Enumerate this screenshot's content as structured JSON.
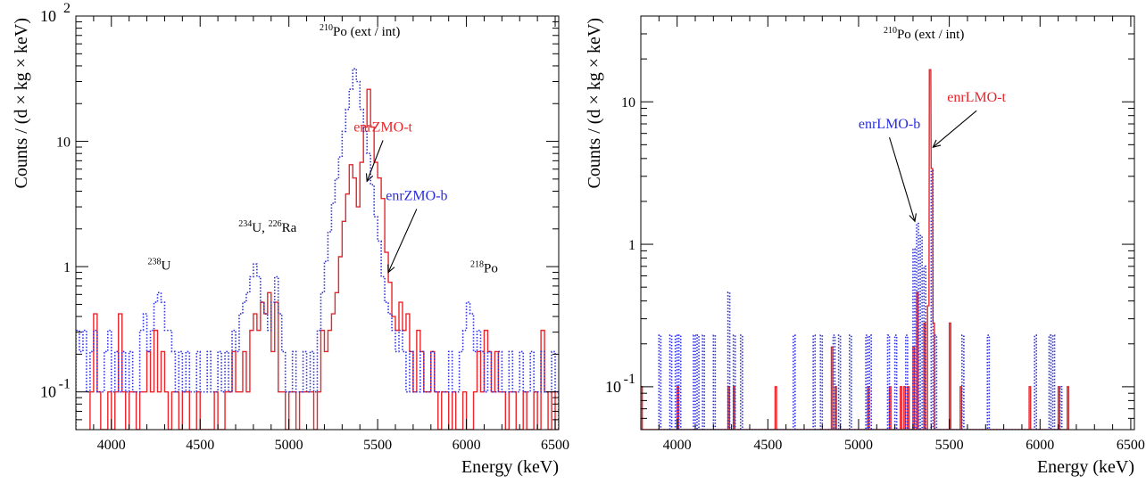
{
  "colors": {
    "red_series": "#e8262b",
    "blue_series": "#2a2ee0",
    "axis": "#000000"
  },
  "chart_data": [
    {
      "type": "line",
      "style": "histogram-step",
      "xlabel": "Energy (keV)",
      "ylabel": "Counts / (d × kg × keV)",
      "xlim": [
        3800,
        6520
      ],
      "ylim": [
        0.05,
        100
      ],
      "yscale": "log",
      "xticks": [
        "4000",
        "4500",
        "5000",
        "5500",
        "6000",
        "6500"
      ],
      "yticks": [
        {
          "value": 0.1,
          "mantissa": "10",
          "exp": "-1"
        },
        {
          "value": 1,
          "mantissa": "1",
          "exp": ""
        },
        {
          "value": 10,
          "mantissa": "10",
          "exp": ""
        },
        {
          "value": 100,
          "mantissa": "10",
          "exp": "2"
        }
      ],
      "annotations": [
        {
          "sup": "238",
          "base": "U",
          "x": 4270,
          "y": 0.95
        },
        {
          "sup": "234",
          "base": "U, ",
          "sup2": "226",
          "base2": "Ra",
          "x": 4880,
          "y": 1.9
        },
        {
          "sup": "210",
          "base": "Po (ext / int)",
          "x": 5400,
          "y": 70
        },
        {
          "sup": "218",
          "base": "Po",
          "x": 6100,
          "y": 0.9
        }
      ],
      "legend_labels": [
        {
          "text": "enrZMO-t",
          "series": "red",
          "x": 5530,
          "y": 12,
          "arrow_to": [
            5440,
            4.8
          ]
        },
        {
          "text": "enrZMO-b",
          "series": "blue",
          "x": 5720,
          "y": 3.4,
          "arrow_to": [
            5560,
            0.9
          ]
        }
      ],
      "series": [
        {
          "name": "enrZMO-t",
          "color": "red",
          "line": "solid",
          "x": [
            3880,
            3900,
            3920,
            3940,
            3960,
            3980,
            4000,
            4020,
            4040,
            4060,
            4080,
            4100,
            4120,
            4140,
            4160,
            4180,
            4200,
            4220,
            4240,
            4260,
            4280,
            4300,
            4320,
            4340,
            4360,
            4380,
            4400,
            4420,
            4440,
            4460,
            4480,
            4500,
            4520,
            4540,
            4560,
            4580,
            4600,
            4620,
            4640,
            4660,
            4680,
            4700,
            4720,
            4740,
            4760,
            4780,
            4800,
            4820,
            4840,
            4860,
            4880,
            4900,
            4920,
            4940,
            4960,
            4980,
            5000,
            5020,
            5040,
            5060,
            5080,
            5100,
            5120,
            5140,
            5160,
            5180,
            5200,
            5220,
            5240,
            5260,
            5280,
            5300,
            5320,
            5340,
            5360,
            5380,
            5400,
            5420,
            5440,
            5460,
            5480,
            5500,
            5520,
            5540,
            5560,
            5580,
            5600,
            5620,
            5640,
            5660,
            5680,
            5700,
            5720,
            5740,
            5760,
            5780,
            5800,
            5820,
            5840,
            5860,
            5880,
            5900,
            5920,
            5940,
            5960,
            5980,
            6000,
            6020,
            6040,
            6060,
            6080,
            6100,
            6120,
            6140,
            6160,
            6180,
            6200,
            6220,
            6240,
            6260,
            6280,
            6300,
            6320,
            6340,
            6360,
            6380,
            6400,
            6420,
            6440,
            6460,
            6480,
            6500
          ],
          "values": [
            0.1,
            0.42,
            0.1,
            0,
            0,
            0.1,
            0,
            0.1,
            0.42,
            0.1,
            0,
            0.1,
            0.1,
            0,
            0.1,
            0.1,
            0.21,
            0.1,
            0.31,
            0.1,
            0.21,
            0.1,
            0,
            0.1,
            0.1,
            0,
            0.1,
            0.1,
            0,
            0,
            0.1,
            0,
            0,
            0,
            0,
            0.1,
            0,
            0,
            0.1,
            0.1,
            0.21,
            0.1,
            0.1,
            0.21,
            0.1,
            0.31,
            0.42,
            0.31,
            0.52,
            0.42,
            0.62,
            0.21,
            0.52,
            0.1,
            0.1,
            0,
            0.1,
            0.1,
            0,
            0.1,
            0.1,
            0.1,
            0.1,
            0,
            0.1,
            0.31,
            0.21,
            0.31,
            0.42,
            0.62,
            1.2,
            2.3,
            3.8,
            6.5,
            5.1,
            3.0,
            6.8,
            13,
            26,
            13,
            6.8,
            5.1,
            3.5,
            1.3,
            0.75,
            0.4,
            0.31,
            0.52,
            0.31,
            0.42,
            0.21,
            0.1,
            0.31,
            0.21,
            0.1,
            0.1,
            0.21,
            0.1,
            0,
            0.1,
            0.1,
            0,
            0.1,
            0,
            0,
            0.1,
            0,
            0,
            0.1,
            0.21,
            0.1,
            0.31,
            0.21,
            0.1,
            0.21,
            0.1,
            0.1,
            0,
            0.1,
            0.1,
            0,
            0,
            0.1,
            0,
            0,
            0.1,
            0,
            0.31,
            0.1,
            0,
            0.1,
            0
          ],
          "bin_width": 20
        },
        {
          "name": "enrZMO-b",
          "color": "blue",
          "line": "dotted",
          "x": [
            3800,
            3820,
            3840,
            3860,
            3880,
            3900,
            3920,
            3940,
            3960,
            3980,
            4000,
            4020,
            4040,
            4060,
            4080,
            4100,
            4120,
            4140,
            4160,
            4180,
            4200,
            4220,
            4240,
            4260,
            4280,
            4300,
            4320,
            4340,
            4360,
            4380,
            4400,
            4420,
            4440,
            4460,
            4480,
            4500,
            4520,
            4540,
            4560,
            4580,
            4600,
            4620,
            4640,
            4660,
            4680,
            4700,
            4720,
            4740,
            4760,
            4780,
            4800,
            4820,
            4840,
            4860,
            4880,
            4900,
            4920,
            4940,
            4960,
            4980,
            5000,
            5020,
            5040,
            5060,
            5080,
            5100,
            5120,
            5140,
            5160,
            5180,
            5200,
            5220,
            5240,
            5260,
            5280,
            5300,
            5320,
            5340,
            5360,
            5380,
            5400,
            5420,
            5440,
            5460,
            5480,
            5500,
            5520,
            5540,
            5560,
            5580,
            5600,
            5620,
            5640,
            5660,
            5680,
            5700,
            5720,
            5740,
            5760,
            5780,
            5800,
            5820,
            5840,
            5860,
            5880,
            5900,
            5920,
            5940,
            5960,
            5980,
            6000,
            6020,
            6040,
            6060,
            6080,
            6100,
            6120,
            6140,
            6160,
            6180,
            6200,
            6220,
            6240,
            6260,
            6280,
            6300,
            6320,
            6340,
            6360,
            6380,
            6400,
            6420,
            6440,
            6460,
            6480,
            6500
          ],
          "values": [
            0.31,
            0.21,
            0.31,
            0.1,
            0.21,
            0.31,
            0.1,
            0.1,
            0.21,
            0.31,
            0.1,
            0.21,
            0.1,
            0.21,
            0.1,
            0.21,
            0.1,
            0.1,
            0.31,
            0.42,
            0.21,
            0.31,
            0.52,
            0.62,
            0.52,
            0.31,
            0.31,
            0.21,
            0.1,
            0.21,
            0.1,
            0.21,
            0.1,
            0.1,
            0.21,
            0.1,
            0.1,
            0.21,
            0.1,
            0.1,
            0.21,
            0.1,
            0.21,
            0.1,
            0.31,
            0.21,
            0.42,
            0.52,
            0.62,
            0.83,
            1.05,
            0.83,
            0.52,
            0.42,
            0.31,
            0.52,
            0.83,
            0.42,
            0.21,
            0.1,
            0.1,
            0.21,
            0.1,
            0.1,
            0.21,
            0.1,
            0.21,
            0.1,
            0.31,
            0.62,
            1.1,
            1.9,
            3.2,
            5.0,
            7.5,
            12,
            18,
            26,
            38,
            30,
            18,
            12,
            8.0,
            4.5,
            2.5,
            1.6,
            0.83,
            0.52,
            0.42,
            0.31,
            0.21,
            0.31,
            0.21,
            0.1,
            0.21,
            0.1,
            0.1,
            0.21,
            0.1,
            0.1,
            0.21,
            0.1,
            0.1,
            0.1,
            0.1,
            0.21,
            0.1,
            0.1,
            0.21,
            0.31,
            0.52,
            0.42,
            0.21,
            0.31,
            0.21,
            0.1,
            0.21,
            0.1,
            0.1,
            0.21,
            0.1,
            0.1,
            0.21,
            0.1,
            0.1,
            0.21,
            0.1,
            0.1,
            0.21,
            0.1,
            0.1,
            0.21,
            0.1,
            0.1,
            0.21,
            0.1
          ],
          "bin_width": 20
        }
      ]
    },
    {
      "type": "line",
      "style": "histogram-step",
      "xlabel": "Energy (keV)",
      "ylabel": "Counts / (d × kg × keV)",
      "xlim": [
        3800,
        6520
      ],
      "ylim": [
        0.05,
        40
      ],
      "yscale": "log",
      "xticks": [
        "4000",
        "4500",
        "5000",
        "5500",
        "6000",
        "6500"
      ],
      "yticks": [
        {
          "value": 0.1,
          "mantissa": "10",
          "exp": "-1"
        },
        {
          "value": 1,
          "mantissa": "1",
          "exp": ""
        },
        {
          "value": 10,
          "mantissa": "10",
          "exp": ""
        }
      ],
      "annotations": [
        {
          "sup": "210",
          "base": "Po (ext / int)",
          "x": 5360,
          "y": 28
        }
      ],
      "legend_labels": [
        {
          "text": "enrLMO-t",
          "series": "red",
          "x": 5650,
          "y": 10,
          "arrow_to": [
            5410,
            4.8
          ]
        },
        {
          "text": "enrLMO-b",
          "series": "blue",
          "x": 5170,
          "y": 6.5,
          "arrow_to": [
            5310,
            1.45
          ]
        }
      ],
      "series": [
        {
          "name": "enrLMO-t",
          "color": "red",
          "line": "solid",
          "x": [
            3800,
            4000,
            4280,
            4310,
            4540,
            4850,
            4870,
            5050,
            5170,
            5230,
            5250,
            5270,
            5300,
            5320,
            5360,
            5380,
            5390,
            5400,
            5410,
            5500,
            5560,
            5940,
            6100,
            6150
          ],
          "values": [
            0.1,
            0.1,
            0.1,
            0.1,
            0.1,
            0.19,
            0.1,
            0.1,
            0.1,
            0.1,
            0.1,
            0.1,
            0.19,
            0.46,
            0.28,
            0.37,
            16.8,
            3.4,
            0.28,
            0.28,
            0.1,
            0.1,
            0.1,
            0.1
          ],
          "bin_width": 8
        },
        {
          "name": "enrLMO-b",
          "color": "blue",
          "line": "dotted",
          "x": [
            3900,
            3960,
            3990,
            4010,
            4090,
            4110,
            4140,
            4200,
            4280,
            4310,
            4350,
            4640,
            4750,
            4790,
            4860,
            4890,
            4950,
            5040,
            5060,
            5160,
            5200,
            5260,
            5300,
            5320,
            5340,
            5360,
            5400,
            5420,
            5570,
            5710,
            5970,
            6050,
            6070,
            6110
          ],
          "values": [
            0.23,
            0.23,
            0.23,
            0.23,
            0.23,
            0.23,
            0.23,
            0.23,
            0.46,
            0.23,
            0.23,
            0.23,
            0.23,
            0.23,
            0.23,
            0.23,
            0.23,
            0.23,
            0.23,
            0.23,
            0.23,
            0.23,
            0.93,
            1.4,
            1.15,
            0.7,
            3.3,
            0.23,
            0.23,
            0.23,
            0.23,
            0.23,
            0.23,
            0.1
          ],
          "bin_width": 10
        }
      ]
    }
  ]
}
